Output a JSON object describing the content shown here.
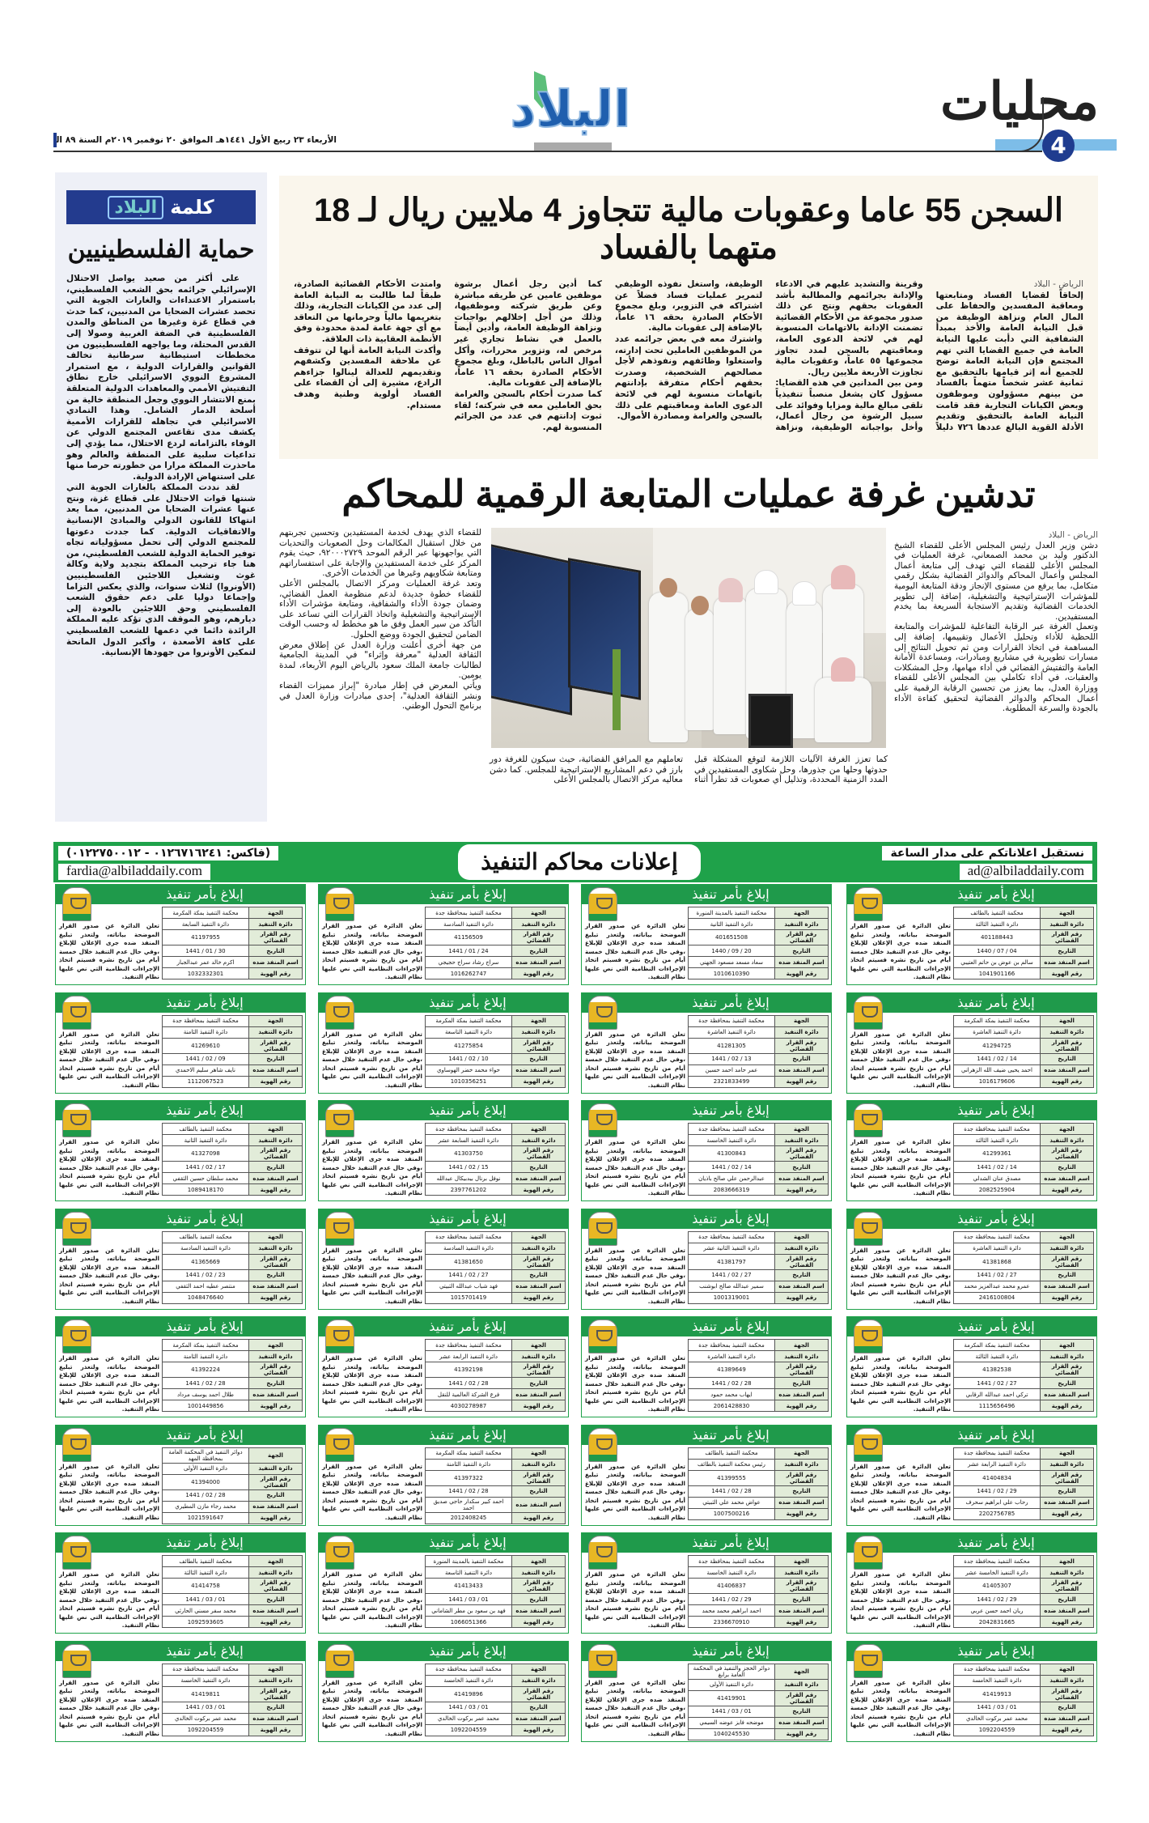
{
  "header": {
    "section": "محليات",
    "page_number": "4",
    "logo_text": "البلاد",
    "date_line": "الأربعاء ٢٣ ربيع الأول ١٤٤١هـ الموافق ٢٠ نوفمبر ٢٠١٩م السنة ٨٩ العدد ٢٣٨٢٤",
    "colors": {
      "brand_blue": "#1f3c8f",
      "accent_light_blue": "#7dbde8",
      "logo_green": "#5cbf7a"
    }
  },
  "editorial": {
    "banner_word": "كلمة",
    "banner_brand": "البلاد",
    "title": "حماية الفلسطينيين",
    "paragraphs": [
      "على أكثر من صعيد يواصل الاحتلال الإسرائيلي جرائمه بحق الشعب الفلسطيني، باستمرار الاعتداءات والغارات الجوية التي تحصد عشرات الضحايا من المدنيين، كما حدث في قطاع غزة وغيرها من المناطق والمدن الفلسطينية في الضفة الغربية وصولا إلى القدس المحتلة، وما يواجهه الفلسطينيون من مخططات استيطانية سرطانية تخالف القوانين والقرارات الدولية ، مع استمرار المشروع النووي الاسرائيلي خارج نطاق التفتيش الأممي والمعاهدات الدولية المتعلقة بمنع الانتشار النووي وجعل المنطقة خالية من أسلحة الدمار الشامل. وهذا التمادي الاسرائيلي في تجاهله للقرارات الأممية يكشف مدى تقاعس المجتمع الدولي عن الوفاء بالتزاماته لردع الاحتلال، مما يؤدي إلى تداعيات سلبية على المنطقة والعالم وهو ماحذرت المملكة مرارا من خطورته حرصا منها على استنهاض الإرادة الدولية.",
      "لقد نددت المملكة بالغارات الجوية التي شنتها قوات الاحتلال على قطاع غزة، ونتج عنها عشرات الضحايا من المدنيين، مما يعد انتهاكا للقانون الدولي والمبادئ الإنسانية والاتفاقيات الدولية. كما جددت دعوتها للمجتمع الدولي إلى تحمل مسؤولياته تجاه توفير الحماية الدولية للشعب الفلسطيني، من هنا جاء ترحيب المملكة بتجديد ولاية وكالة غوث وتشغيل اللاجئين الفلسطينيين (الأونروا) لثلاث سنوات، والذي يعكس التزاما وإجماعا دوليا على دعم حقوق الشعب الفلسطيني وحق اللاجئين بالعودة إلى ديارهم، وهو الموقف الذي تؤكد عليه المملكة الرائدة دائما في دعمها للشعب الفلسطيني على كافة الأصعدة ، وأكبر الدول المانحة لتمكين الأونروا من جهودها الإنسانية."
    ]
  },
  "article1": {
    "headline": "السجن 55 عاما وعقوبات مالية تتجاوز 4 ملايين ريال لـ 18 متهما بالفساد",
    "dateline": "الرياض - البلاد",
    "paragraphs": [
      "إلحاقاً لقضايا الفساد ومتابعتها ومعاقبة المفسدين والحفاظ على المال العام ونزاهة الوظيفة من قبل النيابة العامة والأخذ بمبدأ الشفافية التي دأبت عليها النيابة العامة في جميع القضايا التي تهم المجتمع فإن النيابة العامة توضح للجميع أنه إثر قيامها بالتحقيق مع ثمانية عشر شخصاً متهماً بالفساد من بينهم مسؤولون وموظفون وبعض الكيانات التجارية فقد قامت النيابة العامة بالتحقيق وتقديم الأدلة القوية البالغ عددها ٧٢٦ دليلاً وقرينة والتشديد عليهم في الادعاء والإدانة بجرائمهم والمطالبة بأشد العقوبات بحقهم ونتج عن ذلك صدور مجموعة من الأحكام القضائية تضمنت الإدانة بالاتهامات المنسوبة لهم في لائحة الدعوى العامة، ومعاقبتهم بالسجن لمدد تجاوز مجموعها ٥٥ عاماً، وعقوبات مالية تجاوزت الأربعة ملايين ريال.",
      "ومن بين المدانين في هذه القضايا: مسؤول كان يشغل منصباً تنفيذياً تلقى مبالغ مالية ومزايا وفوائد على سبيل الرشوة من رجال أعمال، وأخل بواجباته الوظيفية، ونزاهة الوظيفة، واستغل نفوذه الوظيفي لتمرير عمليات فساد فضلاً عن اشتراكه في التزوير، وبلغ مجموع الأحكام الصادرة بحقه ١٦ عاماً، بالإضافة إلى عقوبات مالية.",
      "واشترك معه في بعض جرائمه عدد من الموظفين العاملين تحت إدارته، واستغلوا وظائفهم ونفوذهم لأجل مصالحهم الشخصية، وصدرت بحقهم أحكام متفرقة بإدانتهم باتهامات منسوبة لهم في لائحة الدعوى العامة ومعاقبتهم على ذلك بالسجن والغرامة ومصادرة الأموال.",
      "كما أدين رجل أعمال برشوة موظفين عامين عن طريقه مباشرة وعن طريق شركته وموظفيها، وذلك من أجل إخلالهم بواجبات ونزاهة الوظيفة العامة، وأدين أيضاً بالعمل في نشاط تجاري غير مرخص له، وتزوير محررات، وأكل أموال الناس بالباطل، وبلغ مجموع الأحكام الصادرة بحقه ١٦ عاماً، بالإضافة إلى عقوبات مالية.",
      "كما صدرت أحكام بالسجن والغرامة بحق العاملين معه في شركته؛ لقاء ثبوت إدانتهم في عدد من الجرائم المنسوبة لهم.",
      "وامتدت الأحكام القضائية الصادرة، طبقاً لما طالبت به النيابة العامة إلى عدد من الكيانات التجارية، وذلك بتغريمها مالياً وحرمانها من التعاقد مع أي جهة عامة لمدة محدودة وفق الأنظمة العقابية ذات العلاقة.",
      "وأكدت النيابة العامة أنها لن تتوقف عن ملاحقة المفسدين وكشفهم وتقديمهم للعدالة لينالوا جزاءهم الرادع، مشيرة إلى أن القضاء على الفساد أولوية وطنية وهدف مستدام."
    ]
  },
  "article2": {
    "headline": "تدشين غرفة عمليات المتابعة الرقمية للمحاكم",
    "dateline": "الرياض - البلاد",
    "paragraphs": [
      "دشن وزير العدل رئيس المجلس الأعلى للقضاء الشيخ الدكتور وليد بن محمد الصمعاني، غرفة العمليات في المجلس الأعلى للقضاء التي تهدف إلى متابعة أعمال المجلس وأعمال المحاكم والدوائر القضائية بشكل رقمي متكامل، بما يرفع من مستوى الإنجاز ودقة المتابعة اليومية للمؤشرات الإستراتيجية والتشغيلية، إضافة إلى تطوير الخدمات القضائية وتقديم الاستجابة السريعة بما يخدم المستفيدين.",
      "وتعمل الغرفة عبر الرقابة التفاعلية للمؤشرات والمتابعة اللحظية للأداء وتحليل الأعمال وتقييمها، إضافة إلى المساهمة في اتخاذ القرارات ومن ثم تحويل النتائج إلى مسارات تطويرية في مشاريع ومبادرات، ومساعدة الأمانة العامة والتفتيش القضائي في أداء مهامها، وحل المشكلات والعقبات، في أداء تكاملي بين المجلس الأعلى للقضاء ووزارة العدل، بما يعزز من تحسين الرقابة الرقمية على أعمال المحاكم والدوائر القضائية لتحقيق كفاءة الأداء بالجودة والسرعة المطلوبة.",
      "كما تعزز الغرفة الآليات اللازمة لتوقع المشكلة قبل حدوثها وحلها من جذورها، وحل شكاوى المستفيدين في المدد الزمنية المحددة، وتذليل أي صعوبات قد تطرأ أثناء تعاملهم مع المرافق القضائية، حيث سيكون للغرفة دور بارز في دعم المشاريع الإستراتيجية للمجلس. كما دشن معاليه مركز الاتصال بالمجلس الأعلى",
      "للقضاء الذي يهدف لخدمة المستفيدين وتحسين تجربتهم من خلال استقبال المكالمات وحل الصعوبات والتحديات التي يواجهونها عبر الرقم الموحد ٩٢٠٠٠٢٧٢٩، حيث يقوم المركز على خدمة المستفيدين والإجابة على استفساراتهم ومتابعة شكاويهم وغيرها من الخدمات الأخرى.",
      "وتعد غرفة العمليات ومركز الاتصال بالمجلس الأعلى للقضاء خطوة جديدة لدعم منظومة العمل القضائي، وضمان جودة الأداء والشفافية، ومتابعة مؤشرات الأداء الإستراتيجية والتشغيلية واتخاذ القرارات التي تساعد على التأكد من سير العمل وفق ما هو مخطط له وحسب الوقت الضامن لتحقيق الجودة ووضع الحلول.",
      "من جهة أخرى أعلنت وزارة العدل عن إطلاق معرض الثقافة العدلية \"معرفة وإثراء\" في المدينة الجامعية لطالبات جامعة الملك سعود بالرياض اليوم الأربعاء، لمدة يومين.",
      "ويأتي المعرض في إطار مبادرة \"إبراز مميزات القضاء ونشر الثقافة العدلية\"، إحدى مبادرات وزارة العدل في برنامج التحول الوطني."
    ]
  },
  "ads": {
    "banner": {
      "title": "إعلانات محاكم التنفيذ",
      "right_line1": "نستقبل اعلاناتكم على مدار الساعة",
      "right_email": "ad@albiladdaily.com",
      "left_fax": "(فاكس: ٠١٢٦٧١٦٢٤١ - ٠١٢٢٧٥٠٠١٢)",
      "left_email": "fardia@albiladdaily.com",
      "color": "#1fa24a"
    },
    "card_title": "إبلاغ بأمر تنفيذ",
    "labels": {
      "court": "الجهة",
      "circuit": "دائرة التنفيذ",
      "case_no": "رقم القرار القضائي",
      "date": "التاريخ",
      "name": "اسم المنفذ ضده",
      "id": "رقم الهوية"
    },
    "notice_text": "تعلن الدائرة عن صدور القرار الموضحة بياناته، ولتعذر تبليغ المنفذ ضده جرى الإعلان للإبلاغ ،وفي حال عدم التنفيذ خلال خمسة أيام من تاريخ نشره فسيتم اتخاذ الإجراءات النظامية التي نص عليها نظام التنفيذ.",
    "rows": [
      [
        {
          "court": "محكمة التنفيذ بالطائف",
          "circuit": "دائرة التنفيذ الثالثة",
          "case_no": "401188443",
          "date": "04 / 07 / 1440",
          "name": "سالم بن عوض بن حاتم العتيبي",
          "id": "1041901166"
        },
        {
          "court": "محكمة التنفيذ بالمدينة المنورة",
          "circuit": "دائرة التنفيذ الثانية",
          "case_no": "401651508",
          "date": "20 / 09 / 1440",
          "name": "سعاد مسعد مسعود الجهني",
          "id": "1010610390"
        },
        {
          "court": "محكمة التنفيذ بمحافظة جدة",
          "circuit": "دائرة التنفيذ السادسة",
          "case_no": "41156509",
          "date": "24 / 01 / 1441",
          "name": "سراج رشاد سراج حجيجي",
          "id": "1016262747"
        },
        {
          "court": "محكمة التنفيذ بمكة المكرمة",
          "circuit": "دائرة التنفيذ السابعة",
          "case_no": "41197955",
          "date": "30 / 01 / 1441",
          "name": "اكرم خالد عمر عبدالجبار",
          "id": "1032332301"
        }
      ],
      [
        {
          "court": "محكمة التنفيذ بمكة المكرمة",
          "circuit": "دائرة التنفيذ العاشرة",
          "case_no": "41294725",
          "date": "14 / 02 / 1441",
          "name": "احمد يحيى ضيف الله الزهراني",
          "id": "1016179606"
        },
        {
          "court": "محكمة التنفيذ بمحافظة جدة",
          "circuit": "دائرة التنفيذ العاشرة",
          "case_no": "41281305",
          "date": "13 / 02 / 1441",
          "name": "عمر حامد احمد حسين",
          "id": "2321833499"
        },
        {
          "court": "محكمة التنفيذ بمكة المكرمة",
          "circuit": "دائرة التنفيذ التاسعة",
          "case_no": "41275854",
          "date": "10 / 02 / 1441",
          "name": "حواء محمد خضر الهوساوي",
          "id": "1010356251"
        },
        {
          "court": "محكمة التنفيذ بمحافظة جدة",
          "circuit": "دائرة التنفيذ الثامنة",
          "case_no": "41269610",
          "date": "09 / 02 / 1441",
          "name": "نايف شاهر سليم الاحمدي",
          "id": "1112067523"
        }
      ],
      [
        {
          "court": "محكمة التنفيذ بمحافظة جدة",
          "circuit": "دائرة التنفيذ الثالثة",
          "case_no": "41299361",
          "date": "14 / 02 / 1441",
          "name": "مصدق عنان الشدلي",
          "id": "2082525904"
        },
        {
          "court": "محكمة التنفيذ بمحافظة جدة",
          "circuit": "دائرة التنفيذ الخامسة",
          "case_no": "41300843",
          "date": "14 / 02 / 1441",
          "name": "عبدالرحمن علي صالح باذيان",
          "id": "2083666319"
        },
        {
          "court": "محكمة التنفيذ بمحافظة جدة",
          "circuit": "دائرة التنفيذ السابعة عشر",
          "case_no": "41303750",
          "date": "15 / 02 / 1441",
          "name": "نوفل برنال بيدبيكال عبدالله",
          "id": "2397761202"
        },
        {
          "court": "محكمة التنفيذ بالطائف",
          "circuit": "دائرة التنفيذ الثانية",
          "case_no": "41327098",
          "date": "17 / 02 / 1441",
          "name": "محمد سلطان حسين الثقفي",
          "id": "1089418170"
        }
      ],
      [
        {
          "court": "محكمة التنفيذ بمحافظة جدة",
          "circuit": "دائرة التنفيذ العاشرة",
          "case_no": "41381868",
          "date": "27 / 02 / 1441",
          "name": "عمرو محمد عبدالعزيز محمد",
          "id": "2416100804"
        },
        {
          "court": "محكمة التنفيذ بمحافظة جدة",
          "circuit": "دائرة التنفيذ الثانية عشر",
          "case_no": "41381797",
          "date": "27 / 02 / 1441",
          "name": "سمير عبدالله صالح ابوشنب",
          "id": "1001319001"
        },
        {
          "court": "محكمة التنفيذ بمحافظة جدة",
          "circuit": "دائرة التنفيذ السادسة",
          "case_no": "41381650",
          "date": "27 / 02 / 1441",
          "name": "فهد شباب عبدالله الثبيتي",
          "id": "1015701419"
        },
        {
          "court": "محكمة التنفيذ بالطائف",
          "circuit": "دائرة التنفيذ السادسة",
          "case_no": "41365669",
          "date": "23 / 02 / 1441",
          "name": "منتصر عطيه احمد الثقفي",
          "id": "1048476640"
        }
      ],
      [
        {
          "court": "محكمة التنفيذ بمكة المكرمة",
          "circuit": "دائرة التنفيذ الثالثة",
          "case_no": "41382538",
          "date": "27 / 02 / 1441",
          "name": "تركي احمد عبدالله الرقابي",
          "id": "1115656496"
        },
        {
          "court": "محكمة التنفيذ بمحافظة جدة",
          "circuit": "دائرة التنفيذ العاشرة",
          "case_no": "41389649",
          "date": "28 / 02 / 1441",
          "name": "ايهاب محمد حمود",
          "id": "2061428830"
        },
        {
          "court": "محكمة التنفيذ بمحافظة جدة",
          "circuit": "دائرة التنفيذ الرابعة عشر",
          "case_no": "41392198",
          "date": "28 / 02 / 1441",
          "name": "فرع الشركة العالمية للنقل",
          "id": "4030278987"
        },
        {
          "court": "محكمة التنفيذ بمكة المكرمة",
          "circuit": "دائرة التنفيذ الثامنة",
          "case_no": "41392224",
          "date": "28 / 02 / 1441",
          "name": "طلال احمد يوسف مرداد",
          "id": "1001449856"
        }
      ],
      [
        {
          "court": "محكمة التنفيذ بمحافظة جدة",
          "circuit": "دائرة التنفيذ الرابعة عشر",
          "case_no": "41404834",
          "date": "29 / 02 / 1441",
          "name": "رحاب علي ابراهيم سحرف",
          "id": "2202756785"
        },
        {
          "court": "محكمة التنفيذ بالطائف",
          "circuit": "رئيس محكمة التنفيذ بالطائف",
          "case_no": "41399555",
          "date": "28 / 02 / 1441",
          "name": "عواض محمد علي الثبيتي",
          "id": "1007500216"
        },
        {
          "court": "محكمة التنفيذ بمكة المكرمة",
          "circuit": "دائرة التنفيذ الثامنة",
          "case_no": "41397322",
          "date": "28 / 02 / 1441",
          "name": "احمد كبير سكدار حاجي صديق احمد",
          "id": "2012408245"
        },
        {
          "court": "دوائر التنفيذ في المحكمة العامة بمحافظة المهد",
          "circuit": "دائرة التنفيذ الأولى",
          "case_no": "41394000",
          "date": "28 / 02 / 1441",
          "name": "محمد رجاء مازن المطيري",
          "id": "1021591647"
        }
      ],
      [
        {
          "court": "محكمة التنفيذ بمحافظة جدة",
          "circuit": "دائرة التنفيذ الخامسة عشر",
          "case_no": "41405307",
          "date": "29 / 02 / 1441",
          "name": "ريان احمد حسن عربي",
          "id": "2042831665"
        },
        {
          "court": "محكمة التنفيذ بمحافظة جدة",
          "circuit": "دائرة التنفيذ الخامسة",
          "case_no": "41406837",
          "date": "29 / 02 / 1441",
          "name": "احمد ابراهيم محمد محمد",
          "id": "2336670910"
        },
        {
          "court": "محكمة التنفيذ بالمدينة المنورة",
          "circuit": "دائرة التنفيذ التاسعة",
          "case_no": "41413433",
          "date": "01 / 03 / 1441",
          "name": "فهد بن سعود بن مطر الشاماني",
          "id": "1066051366"
        },
        {
          "court": "محكمة التنفيذ بالطائف",
          "circuit": "دائرة التنفيذ الثالثة",
          "case_no": "41414758",
          "date": "01 / 03 / 1441",
          "name": "محمد سفر مسني الحارثي",
          "id": "1092593605"
        }
      ],
      [
        {
          "court": "محكمة التنفيذ بمحافظة جدة",
          "circuit": "دائرة التنفيذ الخامسة",
          "case_no": "41419913",
          "date": "01 / 03 / 1441",
          "name": "محمد عمر بركوت الخالدي",
          "id": "1092204559"
        },
        {
          "court": "دوائر الحجز والتنفيذ في المحكمة العامة برابغ",
          "circuit": "دائرة التنفيذ الأولى",
          "case_no": "41419901",
          "date": "01 / 03 / 1441",
          "name": "موضحه فايز عوضه السيمي",
          "id": "1040245530"
        },
        {
          "court": "محكمة التنفيذ بمحافظة جدة",
          "circuit": "دائرة التنفيذ الخامسة",
          "case_no": "41419896",
          "date": "01 / 03 / 1441",
          "name": "محمد عمر بركوت الخالدي",
          "id": "1092204559"
        },
        {
          "court": "محكمة التنفيذ بمحافظة جدة",
          "circuit": "دائرة التنفيذ الخامسة",
          "case_no": "41419811",
          "date": "01 / 03 / 1441",
          "name": "محمد عمر بركوت الخالدي",
          "id": "1092204559"
        }
      ]
    ]
  }
}
